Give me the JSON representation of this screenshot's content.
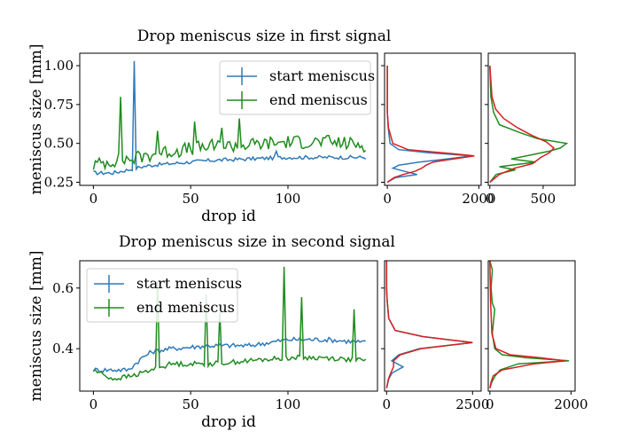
{
  "colors": {
    "start": "#2f7ab9",
    "end": "#1f8c1f",
    "fit": "#d62020"
  },
  "chart_data": [
    {
      "type": "line",
      "title": "Drop meniscus size in first signal",
      "xlabel": "drop id",
      "ylabel": "meniscus size [mm]",
      "xlim": [
        -7,
        146
      ],
      "ylim": [
        0.23,
        1.08
      ],
      "xticks": [
        0,
        50,
        100
      ],
      "yticks": [
        0.25,
        0.5,
        0.75,
        1.0
      ],
      "ytick_labels": [
        "0.25",
        "0.50",
        "0.75",
        "1.00"
      ],
      "legend": "upper-right",
      "series": [
        {
          "name": "start meniscus",
          "key": "start",
          "base": [
            [
              0,
              0.31
            ],
            [
              10,
              0.31
            ],
            [
              18,
              0.33
            ],
            [
              25,
              0.35
            ],
            [
              30,
              0.36
            ],
            [
              40,
              0.37
            ],
            [
              60,
              0.39
            ],
            [
              80,
              0.4
            ],
            [
              100,
              0.41
            ],
            [
              120,
              0.41
            ],
            [
              140,
              0.41
            ]
          ],
          "noise": 0.012,
          "spikes": [
            [
              21,
              1.03
            ],
            [
              94,
              0.45
            ]
          ]
        },
        {
          "name": "end meniscus",
          "key": "end",
          "base": [
            [
              0,
              0.36
            ],
            [
              10,
              0.39
            ],
            [
              20,
              0.4
            ],
            [
              30,
              0.43
            ],
            [
              40,
              0.45
            ],
            [
              60,
              0.48
            ],
            [
              80,
              0.49
            ],
            [
              100,
              0.51
            ],
            [
              120,
              0.51
            ],
            [
              140,
              0.49
            ]
          ],
          "noise": 0.045,
          "spikes": [
            [
              14,
              0.8
            ],
            [
              33,
              0.58
            ],
            [
              52,
              0.64
            ],
            [
              66,
              0.6
            ],
            [
              75,
              0.66
            ]
          ]
        }
      ],
      "histogram": {
        "xlim": [
          -60,
          2050
        ],
        "xticks": [
          0,
          2000
        ],
        "bins": [
          [
            0.25,
            0
          ],
          [
            0.28,
            180
          ],
          [
            0.3,
            650
          ],
          [
            0.32,
            380
          ],
          [
            0.34,
            120
          ],
          [
            0.36,
            250
          ],
          [
            0.38,
            700
          ],
          [
            0.4,
            1300
          ],
          [
            0.42,
            1850
          ],
          [
            0.44,
            900
          ],
          [
            0.46,
            250
          ],
          [
            0.5,
            60
          ],
          [
            0.6,
            20
          ],
          [
            0.7,
            0
          ],
          [
            1.0,
            0
          ]
        ],
        "fit": [
          [
            0.25,
            0
          ],
          [
            0.28,
            150
          ],
          [
            0.3,
            350
          ],
          [
            0.32,
            600
          ],
          [
            0.34,
            750
          ],
          [
            0.36,
            850
          ],
          [
            0.38,
            1000
          ],
          [
            0.4,
            1450
          ],
          [
            0.42,
            1900
          ],
          [
            0.44,
            1200
          ],
          [
            0.46,
            450
          ],
          [
            0.5,
            120
          ],
          [
            0.6,
            25
          ],
          [
            0.7,
            0
          ],
          [
            1.0,
            0
          ]
        ]
      },
      "histogram2": {
        "xlim": [
          -15,
          800
        ],
        "xticks": [
          0,
          500
        ],
        "end_curve": [
          [
            0.25,
            0
          ],
          [
            0.3,
            60
          ],
          [
            0.33,
            240
          ],
          [
            0.35,
            90
          ],
          [
            0.38,
            430
          ],
          [
            0.4,
            200
          ],
          [
            0.43,
            420
          ],
          [
            0.45,
            560
          ],
          [
            0.47,
            660
          ],
          [
            0.5,
            720
          ],
          [
            0.53,
            450
          ],
          [
            0.57,
            280
          ],
          [
            0.62,
            90
          ],
          [
            0.7,
            35
          ],
          [
            0.8,
            10
          ],
          [
            1.0,
            0
          ]
        ],
        "start_curve": [
          [
            0.25,
            0
          ],
          [
            0.3,
            90
          ],
          [
            0.34,
            230
          ],
          [
            0.37,
            400
          ],
          [
            0.41,
            480
          ],
          [
            0.44,
            560
          ],
          [
            0.47,
            600
          ],
          [
            0.51,
            530
          ],
          [
            0.55,
            400
          ],
          [
            0.6,
            260
          ],
          [
            0.66,
            130
          ],
          [
            0.72,
            55
          ],
          [
            0.8,
            20
          ],
          [
            1.0,
            0
          ]
        ]
      }
    },
    {
      "type": "line",
      "title": "Drop meniscus size in second signal",
      "xlabel": "drop id",
      "ylabel": "meniscus size [mm]",
      "xlim": [
        -7,
        146
      ],
      "ylim": [
        0.26,
        0.69
      ],
      "xticks": [
        0,
        50,
        100
      ],
      "yticks": [
        0.4,
        0.6
      ],
      "ytick_labels": [
        "0.4",
        "0.6"
      ],
      "legend": "upper-left",
      "series": [
        {
          "name": "start meniscus",
          "key": "start",
          "base": [
            [
              0,
              0.33
            ],
            [
              10,
              0.33
            ],
            [
              18,
              0.33
            ],
            [
              25,
              0.37
            ],
            [
              30,
              0.39
            ],
            [
              40,
              0.4
            ],
            [
              60,
              0.41
            ],
            [
              80,
              0.41
            ],
            [
              90,
              0.42
            ],
            [
              100,
              0.43
            ],
            [
              120,
              0.43
            ],
            [
              140,
              0.42
            ]
          ],
          "noise": 0.008,
          "spikes": []
        },
        {
          "name": "end meniscus",
          "key": "end",
          "base": [
            [
              0,
              0.33
            ],
            [
              10,
              0.3
            ],
            [
              20,
              0.31
            ],
            [
              30,
              0.33
            ],
            [
              40,
              0.35
            ],
            [
              60,
              0.35
            ],
            [
              80,
              0.36
            ],
            [
              100,
              0.37
            ],
            [
              120,
              0.37
            ],
            [
              140,
              0.36
            ]
          ],
          "noise": 0.008,
          "spikes": [
            [
              33,
              0.62
            ],
            [
              58,
              0.58
            ],
            [
              65,
              0.52
            ],
            [
              98,
              0.67
            ],
            [
              107,
              0.57
            ],
            [
              134,
              0.53
            ]
          ]
        }
      ],
      "histogram": {
        "xlim": [
          -60,
          2750
        ],
        "xticks": [
          0,
          2500
        ],
        "bins": [
          [
            0.27,
            0
          ],
          [
            0.3,
            60
          ],
          [
            0.32,
            160
          ],
          [
            0.34,
            480
          ],
          [
            0.36,
            150
          ],
          [
            0.38,
            350
          ],
          [
            0.4,
            950
          ],
          [
            0.42,
            2500
          ],
          [
            0.44,
            1050
          ],
          [
            0.46,
            250
          ],
          [
            0.5,
            60
          ],
          [
            0.56,
            15
          ],
          [
            0.6,
            0
          ],
          [
            0.69,
            0
          ]
        ],
        "fit": [
          [
            0.27,
            0
          ],
          [
            0.3,
            50
          ],
          [
            0.32,
            120
          ],
          [
            0.34,
            200
          ],
          [
            0.36,
            200
          ],
          [
            0.38,
            400
          ],
          [
            0.4,
            1000
          ],
          [
            0.42,
            2500
          ],
          [
            0.44,
            1050
          ],
          [
            0.46,
            250
          ],
          [
            0.5,
            60
          ],
          [
            0.56,
            15
          ],
          [
            0.6,
            0
          ],
          [
            0.69,
            0
          ]
        ]
      },
      "histogram2": {
        "xlim": [
          -40,
          2100
        ],
        "xticks": [
          0,
          2000
        ],
        "end_curve": [
          [
            0.27,
            0
          ],
          [
            0.29,
            50
          ],
          [
            0.31,
            130
          ],
          [
            0.33,
            250
          ],
          [
            0.35,
            700
          ],
          [
            0.36,
            1950
          ],
          [
            0.37,
            900
          ],
          [
            0.38,
            300
          ],
          [
            0.4,
            120
          ],
          [
            0.45,
            60
          ],
          [
            0.53,
            120
          ],
          [
            0.55,
            60
          ],
          [
            0.6,
            30
          ],
          [
            0.66,
            60
          ],
          [
            0.69,
            0
          ]
        ],
        "start_curve": [
          [
            0.27,
            0
          ],
          [
            0.29,
            30
          ],
          [
            0.31,
            80
          ],
          [
            0.33,
            300
          ],
          [
            0.35,
            1100
          ],
          [
            0.36,
            1850
          ],
          [
            0.37,
            1250
          ],
          [
            0.38,
            500
          ],
          [
            0.4,
            150
          ],
          [
            0.45,
            50
          ],
          [
            0.55,
            20
          ],
          [
            0.69,
            0
          ]
        ]
      }
    }
  ]
}
